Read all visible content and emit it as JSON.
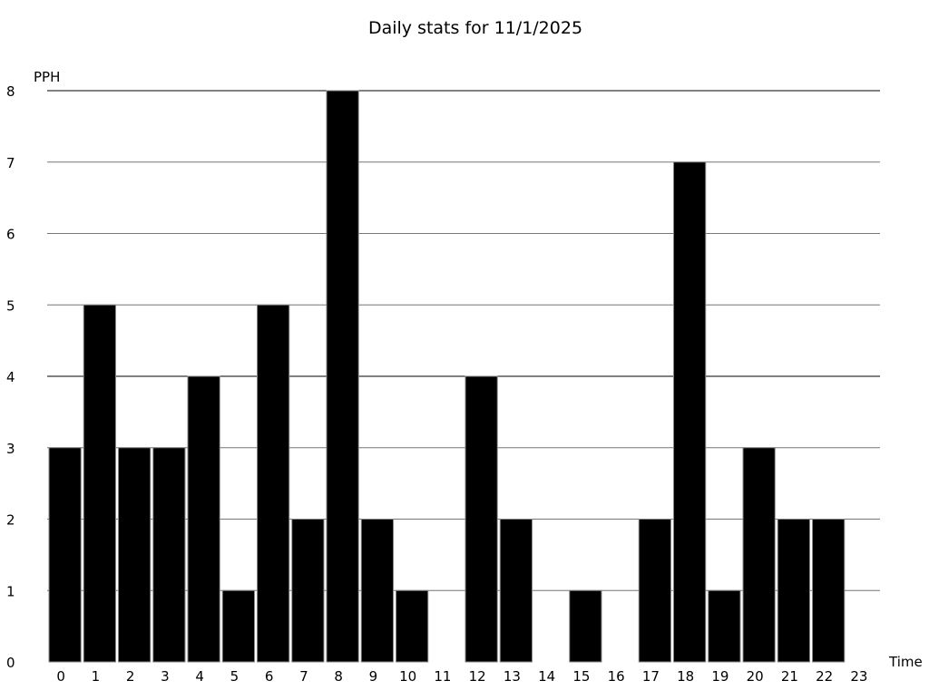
{
  "chart_data": {
    "type": "bar",
    "title": "Daily stats for 11/1/2025",
    "xlabel": "Time",
    "ylabel": "PPH",
    "ylim": [
      0,
      8
    ],
    "yticks": [
      "0",
      "1",
      "2",
      "3",
      "4",
      "5",
      "6",
      "7",
      "8"
    ],
    "grid": true,
    "categories": [
      "0",
      "1",
      "2",
      "3",
      "4",
      "5",
      "6",
      "7",
      "8",
      "9",
      "10",
      "11",
      "12",
      "13",
      "14",
      "15",
      "16",
      "17",
      "18",
      "19",
      "20",
      "21",
      "22",
      "23"
    ],
    "values": [
      3,
      5,
      3,
      3,
      4,
      1,
      5,
      2,
      8,
      2,
      1,
      0,
      4,
      2,
      0,
      1,
      0,
      2,
      7,
      1,
      3,
      2,
      2,
      0
    ],
    "colors": {
      "bar": "#000000",
      "bar_edge": "#888888",
      "grid_major": "#000000",
      "grid_minor": "#777777"
    }
  }
}
